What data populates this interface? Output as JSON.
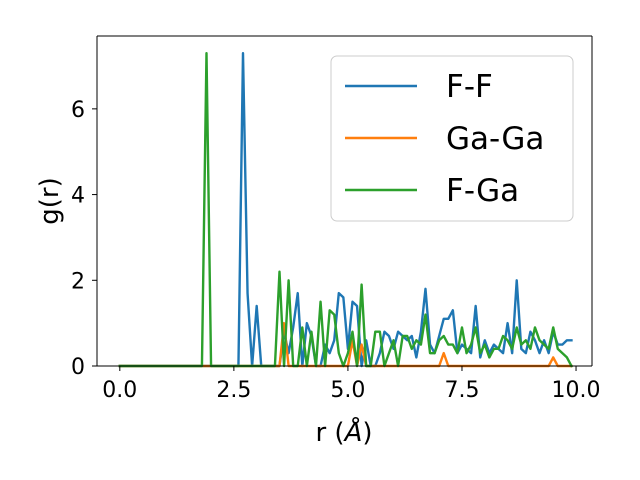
{
  "chart_data": {
    "type": "line",
    "title": "",
    "xlabel": "r (",
    "xlabel_unit": "Å",
    "xlabel_close": ")",
    "ylabel": "g(r)",
    "xlim": [
      -0.5,
      10.35
    ],
    "ylim": [
      0,
      7.7
    ],
    "xticks": [
      0.0,
      2.5,
      5.0,
      7.5,
      10.0
    ],
    "xtick_labels": [
      "0.0",
      "2.5",
      "5.0",
      "7.5",
      "10.0"
    ],
    "yticks": [
      0,
      2,
      4,
      6
    ],
    "ytick_labels": [
      "0",
      "2",
      "4",
      "6"
    ],
    "grid": false,
    "legend_position": "top-right",
    "series": [
      {
        "name": "F-F",
        "color": "#1f77b4",
        "x": [
          0.0,
          0.1,
          0.2,
          0.3,
          0.4,
          0.5,
          0.6,
          0.7,
          0.8,
          0.9,
          1.0,
          1.1,
          1.2,
          1.3,
          1.4,
          1.5,
          1.6,
          1.7,
          1.8,
          1.9,
          2.0,
          2.1,
          2.2,
          2.3,
          2.4,
          2.5,
          2.6,
          2.7,
          2.8,
          2.9,
          3.0,
          3.1,
          3.2,
          3.3,
          3.4,
          3.5,
          3.6,
          3.7,
          3.8,
          3.9,
          4.0,
          4.1,
          4.2,
          4.3,
          4.4,
          4.5,
          4.6,
          4.7,
          4.8,
          4.9,
          5.0,
          5.1,
          5.2,
          5.3,
          5.4,
          5.5,
          5.6,
          5.7,
          5.8,
          5.9,
          6.0,
          6.1,
          6.2,
          6.3,
          6.4,
          6.5,
          6.6,
          6.7,
          6.8,
          6.9,
          7.0,
          7.1,
          7.2,
          7.3,
          7.4,
          7.5,
          7.6,
          7.7,
          7.8,
          7.9,
          8.0,
          8.1,
          8.2,
          8.3,
          8.4,
          8.5,
          8.6,
          8.7,
          8.8,
          8.9,
          9.0,
          9.1,
          9.2,
          9.3,
          9.4,
          9.5,
          9.6,
          9.7,
          9.8,
          9.9
        ],
        "y": [
          0,
          0,
          0,
          0,
          0,
          0,
          0,
          0,
          0,
          0,
          0,
          0,
          0,
          0,
          0,
          0,
          0,
          0,
          0,
          0,
          0,
          0,
          0,
          0,
          0,
          0,
          0,
          7.3,
          1.7,
          0,
          1.4,
          0,
          0,
          0,
          0,
          0,
          0.8,
          0.3,
          0.9,
          1.7,
          0,
          1.0,
          0.7,
          0,
          0,
          0.5,
          0.3,
          0.6,
          1.7,
          1.6,
          0.4,
          1.5,
          1.4,
          0,
          0.6,
          0,
          0,
          0.3,
          0.8,
          0.7,
          0.4,
          0.8,
          0.7,
          0.6,
          0.7,
          0.2,
          0.8,
          1.8,
          0.5,
          0.3,
          0.7,
          1.1,
          1.1,
          1.3,
          0.3,
          0.5,
          0.4,
          0.3,
          1.4,
          0.2,
          0.6,
          0.3,
          0.5,
          0.4,
          0.3,
          1.0,
          0.3,
          2.0,
          0.4,
          0.3,
          0.8,
          0.6,
          0.3,
          0.6,
          0.3,
          0.8,
          0.5,
          0.5,
          0.6,
          0.6
        ]
      },
      {
        "name": "Ga-Ga",
        "color": "#ff7f0e",
        "x": [
          0.0,
          0.1,
          0.2,
          0.3,
          0.4,
          0.5,
          0.6,
          0.7,
          0.8,
          0.9,
          1.0,
          1.1,
          1.2,
          1.3,
          1.4,
          1.5,
          1.6,
          1.7,
          1.8,
          1.9,
          2.0,
          2.1,
          2.2,
          2.3,
          2.4,
          2.5,
          2.6,
          2.7,
          2.8,
          2.9,
          3.0,
          3.1,
          3.2,
          3.3,
          3.4,
          3.5,
          3.6,
          3.7,
          3.8,
          3.9,
          4.0,
          4.1,
          4.2,
          4.3,
          4.4,
          4.5,
          4.6,
          4.7,
          4.8,
          4.9,
          5.0,
          5.1,
          5.2,
          5.3,
          5.4,
          5.5,
          5.6,
          5.7,
          5.8,
          5.9,
          6.0,
          6.1,
          6.2,
          6.3,
          6.4,
          6.5,
          6.6,
          6.7,
          6.8,
          6.9,
          7.0,
          7.1,
          7.2,
          7.3,
          7.4,
          7.5,
          7.6,
          7.7,
          7.8,
          7.9,
          8.0,
          8.1,
          8.2,
          8.3,
          8.4,
          8.5,
          8.6,
          8.7,
          8.8,
          8.9,
          9.0,
          9.1,
          9.2,
          9.3,
          9.4,
          9.5,
          9.6,
          9.7,
          9.8,
          9.9
        ],
        "y": [
          0,
          0,
          0,
          0,
          0,
          0,
          0,
          0,
          0,
          0,
          0,
          0,
          0,
          0,
          0,
          0,
          0,
          0,
          0,
          0,
          0,
          0,
          0,
          0,
          0,
          0,
          0,
          0,
          0,
          0,
          0,
          0,
          0,
          0,
          0,
          0,
          1.0,
          0,
          0,
          0,
          0,
          0,
          0,
          0,
          0,
          0,
          0,
          0,
          0,
          0,
          0,
          0.6,
          0,
          0.5,
          0,
          0,
          0,
          0,
          0,
          0,
          0,
          0,
          0,
          0,
          0,
          0,
          0,
          0,
          0,
          0,
          0,
          0.3,
          0,
          0,
          0,
          0,
          0,
          0,
          0,
          0,
          0,
          0,
          0,
          0,
          0,
          0,
          0,
          0,
          0,
          0,
          0,
          0,
          0,
          0,
          0,
          0.2,
          0,
          0,
          0,
          0
        ]
      },
      {
        "name": "F-Ga",
        "color": "#2ca02c",
        "x": [
          0.0,
          0.1,
          0.2,
          0.3,
          0.4,
          0.5,
          0.6,
          0.7,
          0.8,
          0.9,
          1.0,
          1.1,
          1.2,
          1.3,
          1.4,
          1.5,
          1.6,
          1.7,
          1.8,
          1.9,
          2.0,
          2.1,
          2.2,
          2.3,
          2.4,
          2.5,
          2.6,
          2.7,
          2.8,
          2.9,
          3.0,
          3.1,
          3.2,
          3.3,
          3.4,
          3.5,
          3.6,
          3.7,
          3.8,
          3.9,
          4.0,
          4.1,
          4.2,
          4.3,
          4.4,
          4.5,
          4.6,
          4.7,
          4.8,
          4.9,
          5.0,
          5.1,
          5.2,
          5.3,
          5.4,
          5.5,
          5.6,
          5.7,
          5.8,
          5.9,
          6.0,
          6.1,
          6.2,
          6.3,
          6.4,
          6.5,
          6.6,
          6.7,
          6.8,
          6.9,
          7.0,
          7.1,
          7.2,
          7.3,
          7.4,
          7.5,
          7.6,
          7.7,
          7.8,
          7.9,
          8.0,
          8.1,
          8.2,
          8.3,
          8.4,
          8.5,
          8.6,
          8.7,
          8.8,
          8.9,
          9.0,
          9.1,
          9.2,
          9.3,
          9.4,
          9.5,
          9.6,
          9.7,
          9.8,
          9.9
        ],
        "y": [
          0,
          0,
          0,
          0,
          0,
          0,
          0,
          0,
          0,
          0,
          0,
          0,
          0,
          0,
          0,
          0,
          0,
          0,
          0,
          7.3,
          0,
          0,
          0,
          0,
          0,
          0,
          0,
          0,
          0,
          0,
          0,
          0,
          0,
          0,
          0,
          2.2,
          0,
          2.0,
          0,
          0,
          0.9,
          0,
          0.8,
          0,
          1.5,
          0,
          1.3,
          1.2,
          0.3,
          0,
          0.3,
          0.8,
          0,
          1.9,
          0,
          0,
          0.8,
          0.8,
          0,
          0.3,
          0.6,
          0,
          0.7,
          0.7,
          0.4,
          0.6,
          0.5,
          1.2,
          0.3,
          0.3,
          0.6,
          0.7,
          0.5,
          0.5,
          0.3,
          0.9,
          0.3,
          0.5,
          0.9,
          0.3,
          0.5,
          0.2,
          0.4,
          0.4,
          0.7,
          0.6,
          0.4,
          0.9,
          0.5,
          0.6,
          0.4,
          0.9,
          0.6,
          0.5,
          0.4,
          0.9,
          0.4,
          0.3,
          0.2,
          0
        ]
      }
    ]
  }
}
